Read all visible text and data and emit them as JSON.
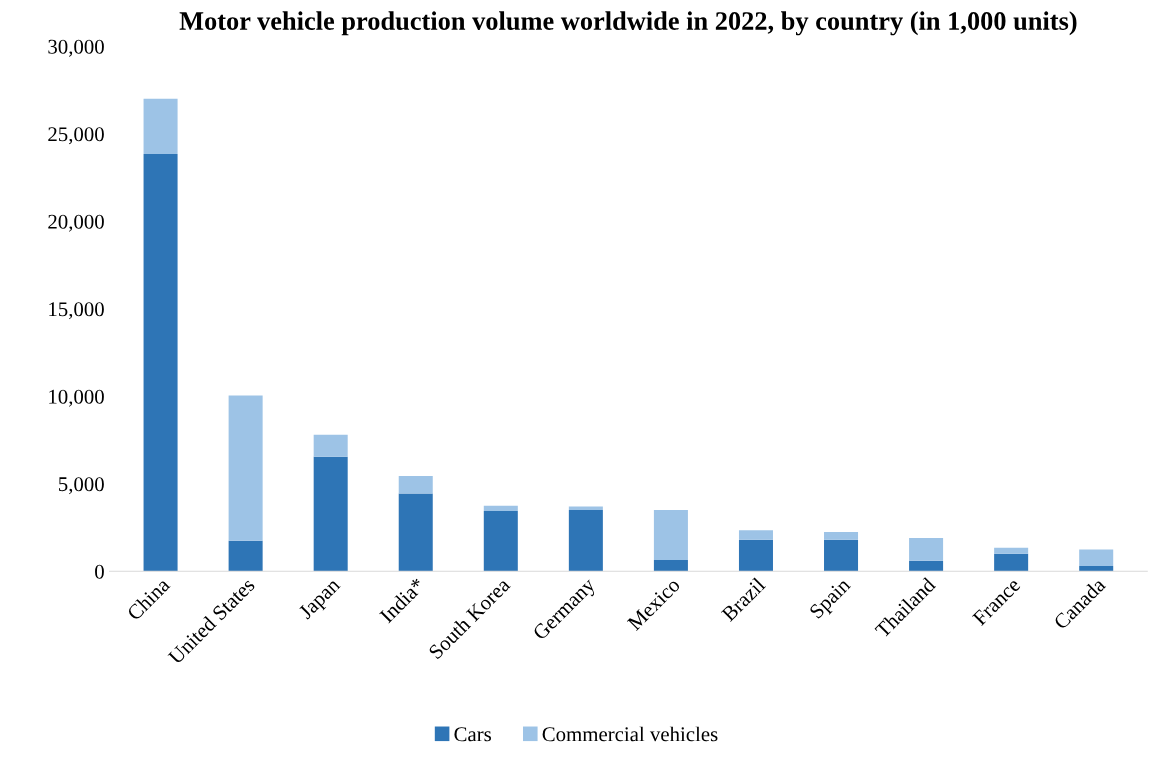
{
  "chart_data": {
    "type": "bar",
    "title": "Motor vehicle production volume worldwide in 2022, by country (in 1,000 units)",
    "categories": [
      "China",
      "United States",
      "Japan",
      "India*",
      "South Korea",
      "Germany",
      "Mexico",
      "Brazil",
      "Spain",
      "Thailand",
      "France",
      "Canada"
    ],
    "series": [
      {
        "name": "Cars",
        "color": "#2e75b6",
        "values": [
          23850,
          1750,
          6550,
          4450,
          3450,
          3500,
          650,
          1800,
          1800,
          600,
          1000,
          300
        ]
      },
      {
        "name": "Commercial vehicles",
        "color": "#9dc3e6",
        "values": [
          3150,
          8300,
          1250,
          1000,
          300,
          200,
          2850,
          550,
          450,
          1300,
          350,
          950
        ]
      }
    ],
    "stacked": true,
    "ylim": [
      0,
      30000
    ],
    "yticks": [
      {
        "value": 0,
        "label": "0"
      },
      {
        "value": 5000,
        "label": "5,000"
      },
      {
        "value": 10000,
        "label": "10,000"
      },
      {
        "value": 15000,
        "label": "15,000"
      },
      {
        "value": 20000,
        "label": "20,000"
      },
      {
        "value": 25000,
        "label": "25,000"
      },
      {
        "value": 30000,
        "label": "30,000"
      }
    ],
    "grid": false,
    "legend": "bottom"
  }
}
